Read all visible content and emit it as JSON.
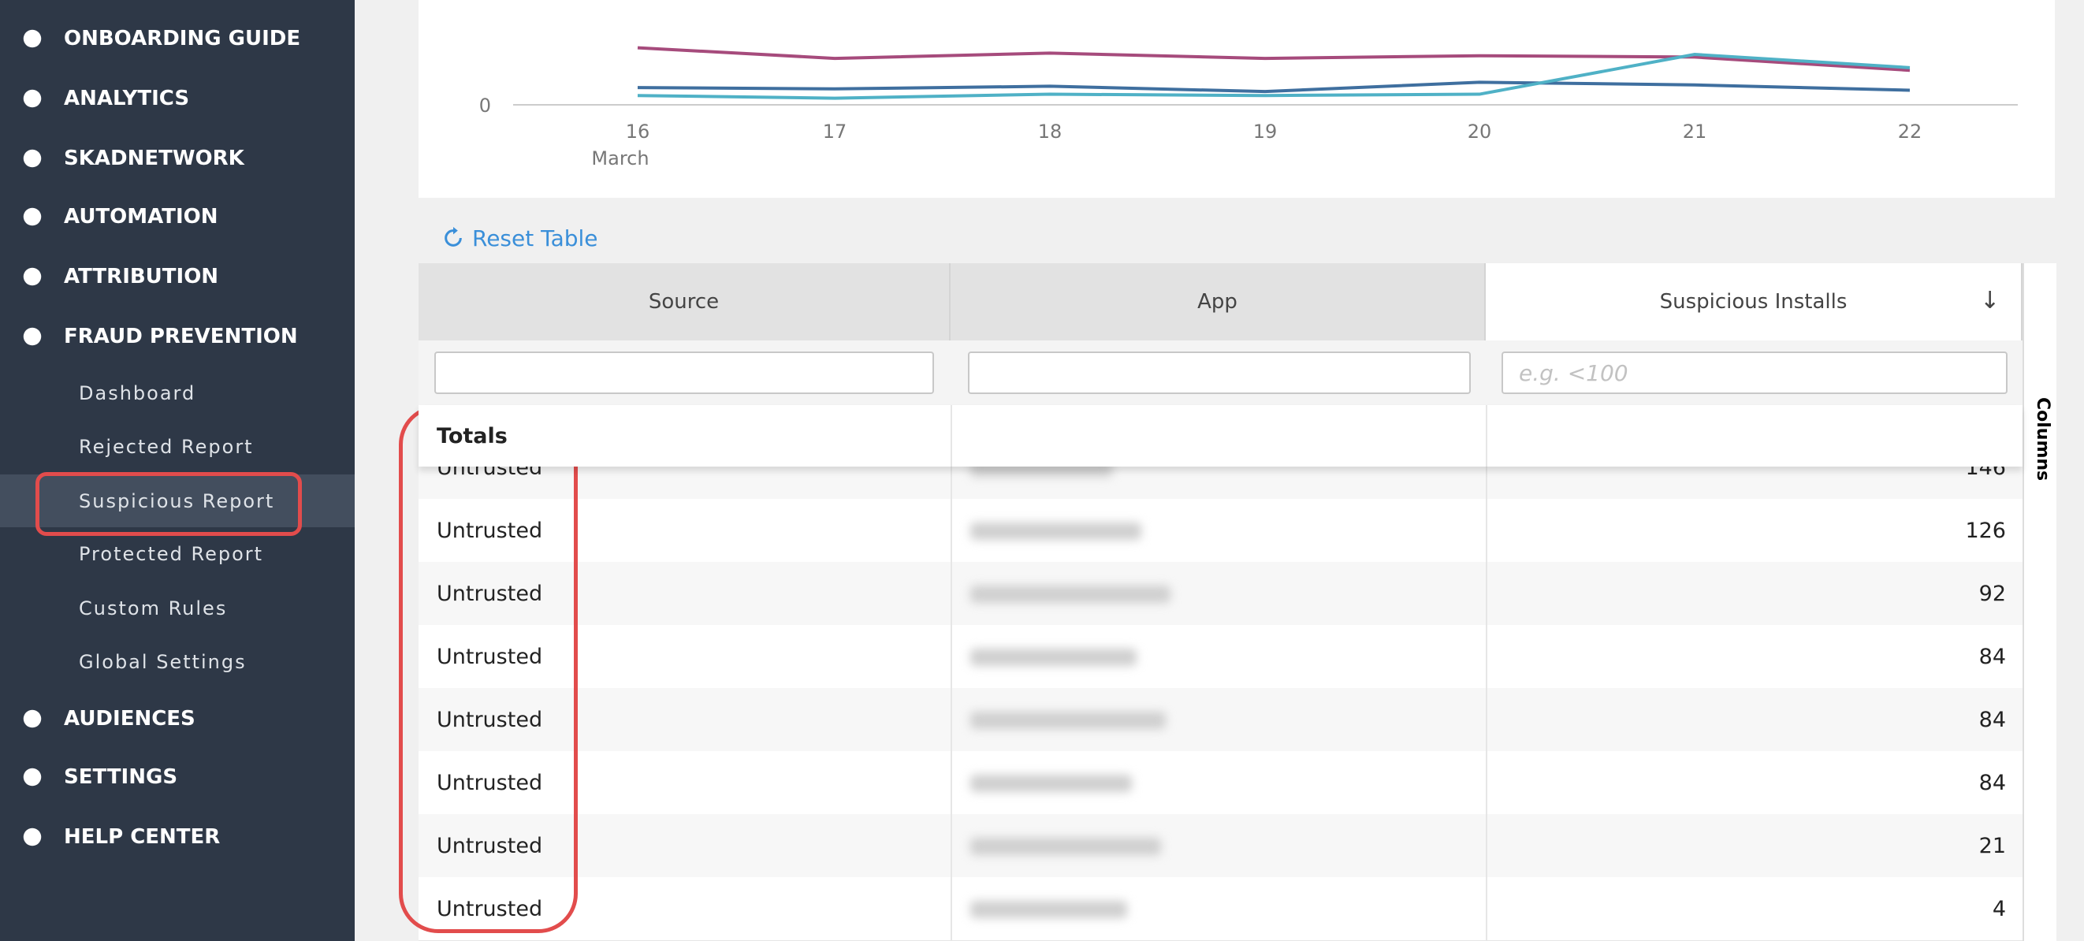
{
  "sidebar": {
    "items": [
      "ONBOARDING GUIDE",
      "ANALYTICS",
      "SKADNETWORK",
      "AUTOMATION",
      "ATTRIBUTION",
      "FRAUD PREVENTION"
    ],
    "fraud_items": [
      "Dashboard",
      "Rejected Report",
      "Suspicious Report",
      "Protected Report",
      "Custom Rules",
      "Global Settings"
    ],
    "bottom_items": [
      "AUDIENCES",
      "SETTINGS",
      "HELP CENTER"
    ]
  },
  "chart_data": {
    "type": "line",
    "categories": [
      "16",
      "17",
      "18",
      "19",
      "20",
      "21",
      "22"
    ],
    "x_month": "March",
    "ylim": [
      0,
      79
    ],
    "yticks": [
      0
    ],
    "series": [
      {
        "color": "#a64b7c",
        "values": [
          43,
          35,
          39,
          35,
          37,
          36,
          26
        ]
      },
      {
        "color": "#3f6f9f",
        "values": [
          13,
          12,
          14,
          10,
          17,
          15,
          11
        ]
      },
      {
        "color": "#4fb1c6",
        "values": [
          7,
          5,
          8,
          7,
          8,
          38,
          28
        ]
      }
    ]
  },
  "reset_label": "Reset Table",
  "table": {
    "columns": [
      "Source",
      "App",
      "Suspicious Installs"
    ],
    "filter_placeholder": "e.g. <100",
    "totals_label": "Totals",
    "rows": [
      {
        "source": "Untrusted",
        "installs": "146"
      },
      {
        "source": "Untrusted",
        "installs": "126"
      },
      {
        "source": "Untrusted",
        "installs": "92"
      },
      {
        "source": "Untrusted",
        "installs": "84"
      },
      {
        "source": "Untrusted",
        "installs": "84"
      },
      {
        "source": "Untrusted",
        "installs": "84"
      },
      {
        "source": "Untrusted",
        "installs": "21"
      },
      {
        "source": "Untrusted",
        "installs": "4"
      }
    ]
  },
  "columns_panel_label": "Columns"
}
